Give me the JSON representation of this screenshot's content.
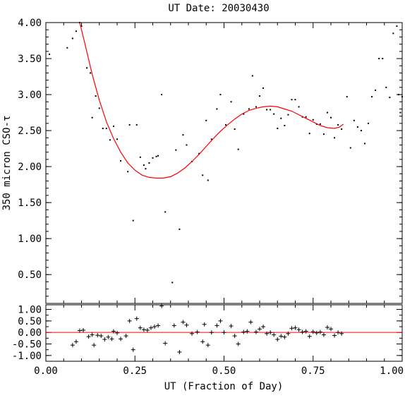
{
  "chart_data": [
    {
      "type": "scatter",
      "title": "UT Date: 20030430",
      "xlabel": "",
      "ylabel": "350 micron CSO-τ",
      "xlim": [
        0.0,
        1.0
      ],
      "ylim": [
        0.1,
        4.0
      ],
      "yticks": [
        "4.00",
        "3.50",
        "3.00",
        "2.50",
        "2.00",
        "1.50",
        "1.00",
        "0.50"
      ],
      "ytick_values": [
        4.0,
        3.5,
        3.0,
        2.5,
        2.0,
        1.5,
        1.0,
        0.5
      ],
      "grid": false,
      "fit_color": "#ff0000",
      "points": [
        [
          0.01,
          3.56
        ],
        [
          0.06,
          3.65
        ],
        [
          0.075,
          3.78
        ],
        [
          0.085,
          3.88
        ],
        [
          0.095,
          4.0
        ],
        [
          0.1,
          3.95
        ],
        [
          0.115,
          3.37
        ],
        [
          0.125,
          3.3
        ],
        [
          0.13,
          2.68
        ],
        [
          0.14,
          2.98
        ],
        [
          0.15,
          2.81
        ],
        [
          0.16,
          2.53
        ],
        [
          0.17,
          2.53
        ],
        [
          0.18,
          2.37
        ],
        [
          0.19,
          2.56
        ],
        [
          0.2,
          2.38
        ],
        [
          0.21,
          2.08
        ],
        [
          0.23,
          1.93
        ],
        [
          0.235,
          2.58
        ],
        [
          0.245,
          1.25
        ],
        [
          0.255,
          2.58
        ],
        [
          0.265,
          2.13
        ],
        [
          0.275,
          2.02
        ],
        [
          0.28,
          1.97
        ],
        [
          0.29,
          2.05
        ],
        [
          0.3,
          2.12
        ],
        [
          0.31,
          2.14
        ],
        [
          0.315,
          2.15
        ],
        [
          0.325,
          3.0
        ],
        [
          0.335,
          1.37
        ],
        [
          0.355,
          0.39
        ],
        [
          0.365,
          2.23
        ],
        [
          0.375,
          1.13
        ],
        [
          0.385,
          2.44
        ],
        [
          0.395,
          2.3
        ],
        [
          0.41,
          2.07
        ],
        [
          0.43,
          2.18
        ],
        [
          0.44,
          1.88
        ],
        [
          0.45,
          2.64
        ],
        [
          0.455,
          1.81
        ],
        [
          0.465,
          2.38
        ],
        [
          0.48,
          2.8
        ],
        [
          0.49,
          3.0
        ],
        [
          0.505,
          2.58
        ],
        [
          0.52,
          2.9
        ],
        [
          0.53,
          2.52
        ],
        [
          0.54,
          2.24
        ],
        [
          0.555,
          2.73
        ],
        [
          0.57,
          2.8
        ],
        [
          0.58,
          3.26
        ],
        [
          0.59,
          2.83
        ],
        [
          0.6,
          2.98
        ],
        [
          0.61,
          3.09
        ],
        [
          0.62,
          2.79
        ],
        [
          0.63,
          2.79
        ],
        [
          0.64,
          2.73
        ],
        [
          0.65,
          2.53
        ],
        [
          0.66,
          2.67
        ],
        [
          0.67,
          2.57
        ],
        [
          0.68,
          2.72
        ],
        [
          0.69,
          2.93
        ],
        [
          0.7,
          2.93
        ],
        [
          0.71,
          2.83
        ],
        [
          0.72,
          2.69
        ],
        [
          0.73,
          2.69
        ],
        [
          0.74,
          2.46
        ],
        [
          0.75,
          2.65
        ],
        [
          0.76,
          2.59
        ],
        [
          0.77,
          2.59
        ],
        [
          0.78,
          2.45
        ],
        [
          0.79,
          2.75
        ],
        [
          0.8,
          2.68
        ],
        [
          0.81,
          2.4
        ],
        [
          0.82,
          2.58
        ],
        [
          0.83,
          2.52
        ],
        [
          0.845,
          2.97
        ],
        [
          0.855,
          2.26
        ],
        [
          0.865,
          2.64
        ],
        [
          0.875,
          2.55
        ],
        [
          0.885,
          2.5
        ],
        [
          0.895,
          2.32
        ],
        [
          0.905,
          2.6
        ],
        [
          0.915,
          2.97
        ],
        [
          0.925,
          3.06
        ],
        [
          0.935,
          3.5
        ],
        [
          0.945,
          3.5
        ],
        [
          0.955,
          3.1
        ],
        [
          0.965,
          2.96
        ],
        [
          0.975,
          3.85
        ],
        [
          0.985,
          3.95
        ],
        [
          0.99,
          3.0
        ],
        [
          0.995,
          2.75
        ],
        [
          1.0,
          2.97
        ]
      ],
      "fit_curve": [
        [
          0.095,
          4.0
        ],
        [
          0.11,
          3.7
        ],
        [
          0.13,
          3.28
        ],
        [
          0.15,
          2.92
        ],
        [
          0.17,
          2.62
        ],
        [
          0.19,
          2.39
        ],
        [
          0.21,
          2.2
        ],
        [
          0.23,
          2.05
        ],
        [
          0.25,
          1.95
        ],
        [
          0.27,
          1.88
        ],
        [
          0.29,
          1.85
        ],
        [
          0.31,
          1.84
        ],
        [
          0.33,
          1.84
        ],
        [
          0.35,
          1.86
        ],
        [
          0.37,
          1.91
        ],
        [
          0.39,
          1.98
        ],
        [
          0.41,
          2.07
        ],
        [
          0.43,
          2.17
        ],
        [
          0.45,
          2.28
        ],
        [
          0.47,
          2.39
        ],
        [
          0.49,
          2.49
        ],
        [
          0.51,
          2.58
        ],
        [
          0.53,
          2.66
        ],
        [
          0.55,
          2.73
        ],
        [
          0.57,
          2.78
        ],
        [
          0.59,
          2.81
        ],
        [
          0.61,
          2.83
        ],
        [
          0.63,
          2.84
        ],
        [
          0.65,
          2.83
        ],
        [
          0.67,
          2.8
        ],
        [
          0.69,
          2.77
        ],
        [
          0.71,
          2.72
        ],
        [
          0.73,
          2.67
        ],
        [
          0.75,
          2.62
        ],
        [
          0.77,
          2.57
        ],
        [
          0.79,
          2.54
        ],
        [
          0.81,
          2.53
        ],
        [
          0.825,
          2.55
        ],
        [
          0.835,
          2.59
        ]
      ]
    },
    {
      "type": "scatter",
      "title": "",
      "xlabel": "UT (Fraction of Day)",
      "ylabel": "",
      "xlim": [
        0.0,
        1.0
      ],
      "ylim": [
        -1.25,
        1.2
      ],
      "xticks": [
        "0.00",
        "0.25",
        "0.50",
        "0.75",
        "1.00"
      ],
      "xtick_values": [
        0.0,
        0.25,
        0.5,
        0.75,
        1.0
      ],
      "yticks": [
        "1.00",
        "0.50",
        "0.00",
        "-0.50",
        "-1.00"
      ],
      "ytick_values": [
        1.0,
        0.5,
        0.0,
        -0.5,
        -1.0
      ],
      "grid": false,
      "zero_line_color": "#ff0000",
      "residuals": [
        [
          0.075,
          -0.55
        ],
        [
          0.085,
          -0.4
        ],
        [
          0.095,
          0.08
        ],
        [
          0.105,
          0.1
        ],
        [
          0.12,
          -0.18
        ],
        [
          0.13,
          -0.1
        ],
        [
          0.135,
          -0.55
        ],
        [
          0.145,
          -0.12
        ],
        [
          0.155,
          -0.15
        ],
        [
          0.165,
          -0.3
        ],
        [
          0.175,
          -0.2
        ],
        [
          0.185,
          -0.28
        ],
        [
          0.19,
          0.05
        ],
        [
          0.2,
          -0.02
        ],
        [
          0.21,
          -0.28
        ],
        [
          0.225,
          -0.15
        ],
        [
          0.235,
          0.5
        ],
        [
          0.245,
          -0.75
        ],
        [
          0.255,
          0.6
        ],
        [
          0.265,
          0.2
        ],
        [
          0.275,
          0.12
        ],
        [
          0.285,
          0.1
        ],
        [
          0.295,
          0.2
        ],
        [
          0.305,
          0.25
        ],
        [
          0.315,
          0.3
        ],
        [
          0.325,
          1.15
        ],
        [
          0.335,
          -0.47
        ],
        [
          0.36,
          0.3
        ],
        [
          0.375,
          -0.85
        ],
        [
          0.385,
          0.45
        ],
        [
          0.395,
          0.32
        ],
        [
          0.41,
          -0.05
        ],
        [
          0.425,
          0.02
        ],
        [
          0.44,
          -0.4
        ],
        [
          0.445,
          0.35
        ],
        [
          0.455,
          -0.55
        ],
        [
          0.465,
          0.0
        ],
        [
          0.48,
          0.3
        ],
        [
          0.49,
          0.5
        ],
        [
          0.5,
          0.0
        ],
        [
          0.52,
          0.28
        ],
        [
          0.53,
          -0.15
        ],
        [
          0.54,
          -0.5
        ],
        [
          0.555,
          0.02
        ],
        [
          0.565,
          0.05
        ],
        [
          0.575,
          0.45
        ],
        [
          0.59,
          0.02
        ],
        [
          0.6,
          0.15
        ],
        [
          0.61,
          0.25
        ],
        [
          0.62,
          -0.05
        ],
        [
          0.63,
          0.0
        ],
        [
          0.64,
          -0.1
        ],
        [
          0.65,
          -0.3
        ],
        [
          0.66,
          -0.16
        ],
        [
          0.67,
          -0.2
        ],
        [
          0.68,
          -0.05
        ],
        [
          0.69,
          0.18
        ],
        [
          0.7,
          0.2
        ],
        [
          0.71,
          0.12
        ],
        [
          0.72,
          0.02
        ],
        [
          0.73,
          0.05
        ],
        [
          0.74,
          -0.17
        ],
        [
          0.75,
          0.03
        ],
        [
          0.76,
          -0.02
        ],
        [
          0.77,
          0.02
        ],
        [
          0.78,
          -0.1
        ],
        [
          0.79,
          0.22
        ],
        [
          0.8,
          0.15
        ],
        [
          0.81,
          -0.13
        ],
        [
          0.82,
          0.0
        ],
        [
          0.83,
          -0.05
        ]
      ]
    }
  ]
}
